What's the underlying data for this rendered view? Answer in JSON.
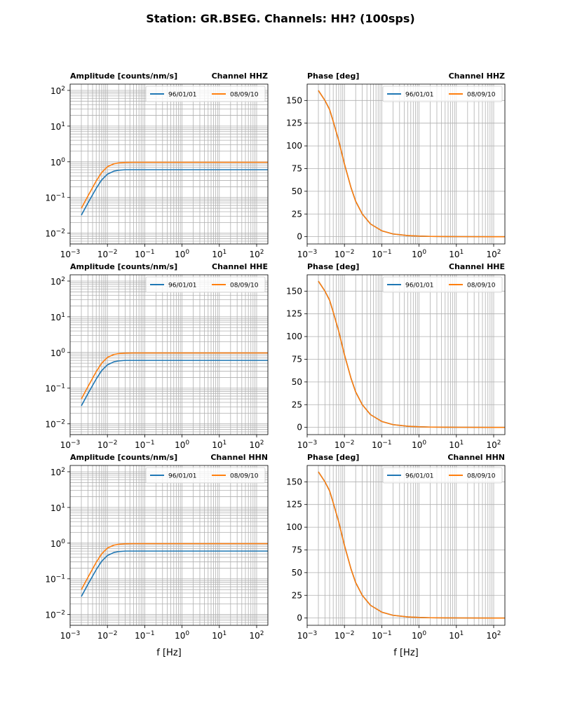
{
  "chart_data": {
    "type": "line",
    "title": "Station: GR.BSEG. Channels: HH? (100sps)",
    "xlabel": "f [Hz]",
    "xscale": "log",
    "xlim": [
      0.001,
      200
    ],
    "legend": [
      "96/01/01",
      "08/09/10"
    ],
    "colors": {
      "series1": "#1f77b4",
      "series2": "#ff7f0e",
      "grid": "#b0b0b0",
      "axes": "#000000"
    },
    "amplitude_curves": {
      "x": [
        0.002,
        0.003,
        0.005,
        0.007,
        0.01,
        0.015,
        0.02,
        0.03,
        0.05,
        0.1,
        1,
        10,
        100,
        200
      ],
      "series": [
        {
          "name": "96/01/01",
          "values": [
            0.032,
            0.07,
            0.18,
            0.31,
            0.45,
            0.55,
            0.58,
            0.6,
            0.6,
            0.6,
            0.6,
            0.6,
            0.6,
            0.6
          ]
        },
        {
          "name": "08/09/10",
          "values": [
            0.05,
            0.11,
            0.29,
            0.5,
            0.73,
            0.88,
            0.93,
            0.96,
            0.97,
            0.97,
            0.97,
            0.97,
            0.97,
            0.97
          ]
        }
      ]
    },
    "phase_curves": {
      "x": [
        0.002,
        0.003,
        0.004,
        0.005,
        0.007,
        0.01,
        0.015,
        0.02,
        0.03,
        0.05,
        0.1,
        0.2,
        0.5,
        1,
        2,
        10,
        100,
        200
      ],
      "series": [
        {
          "name": "96/01/01",
          "values": [
            161,
            150,
            140,
            127,
            106,
            80,
            54,
            39,
            25,
            14,
            6.5,
            3,
            1.2,
            0.6,
            0.3,
            0.1,
            0,
            0
          ]
        },
        {
          "name": "08/09/10",
          "values": [
            161,
            150,
            140,
            127,
            106,
            80,
            54,
            39,
            25,
            14,
            6.5,
            3,
            1.2,
            0.6,
            0.3,
            0.1,
            0,
            0
          ]
        }
      ]
    },
    "panels": [
      {
        "id": "amp-hhz",
        "kind": "amplitude",
        "title_left": "Amplitude [counts/nm/s]",
        "title_right": "Channel HHZ",
        "yscale": "log",
        "ylim": [
          0.005,
          150
        ],
        "show_xlabel": false
      },
      {
        "id": "phase-hhz",
        "kind": "phase",
        "title_left": "Phase [deg]",
        "title_right": "Channel HHZ",
        "yscale": "linear",
        "ylim": [
          -8,
          168
        ],
        "show_xlabel": false
      },
      {
        "id": "amp-hhe",
        "kind": "amplitude",
        "title_left": "Amplitude [counts/nm/s]",
        "title_right": "Channel HHE",
        "yscale": "log",
        "ylim": [
          0.005,
          150
        ],
        "show_xlabel": false
      },
      {
        "id": "phase-hhe",
        "kind": "phase",
        "title_left": "Phase [deg]",
        "title_right": "Channel HHE",
        "yscale": "linear",
        "ylim": [
          -8,
          168
        ],
        "show_xlabel": false
      },
      {
        "id": "amp-hhn",
        "kind": "amplitude",
        "title_left": "Amplitude [counts/nm/s]",
        "title_right": "Channel HHN",
        "yscale": "log",
        "ylim": [
          0.005,
          150
        ],
        "show_xlabel": true
      },
      {
        "id": "phase-hhn",
        "kind": "phase",
        "title_left": "Phase [deg]",
        "title_right": "Channel HHN",
        "yscale": "linear",
        "ylim": [
          -8,
          168
        ],
        "show_xlabel": true
      }
    ],
    "x_tick_labels": [
      {
        "value": 0.001,
        "base": "10",
        "exp": "−3"
      },
      {
        "value": 0.01,
        "base": "10",
        "exp": "−2"
      },
      {
        "value": 0.1,
        "base": "10",
        "exp": "−1"
      },
      {
        "value": 1,
        "base": "10",
        "exp": "0"
      },
      {
        "value": 10,
        "base": "10",
        "exp": "1"
      },
      {
        "value": 100,
        "base": "10",
        "exp": "2"
      }
    ],
    "amp_y_tick_labels": [
      {
        "value": 0.01,
        "base": "10",
        "exp": "−2"
      },
      {
        "value": 0.1,
        "base": "10",
        "exp": "−1"
      },
      {
        "value": 1,
        "base": "10",
        "exp": "0"
      },
      {
        "value": 10,
        "base": "10",
        "exp": "1"
      },
      {
        "value": 100,
        "base": "10",
        "exp": "2"
      }
    ],
    "phase_y_tick_labels": [
      {
        "value": 0,
        "label": "0"
      },
      {
        "value": 25,
        "label": "25"
      },
      {
        "value": 50,
        "label": "50"
      },
      {
        "value": 75,
        "label": "75"
      },
      {
        "value": 100,
        "label": "100"
      },
      {
        "value": 125,
        "label": "125"
      },
      {
        "value": 150,
        "label": "150"
      }
    ]
  }
}
